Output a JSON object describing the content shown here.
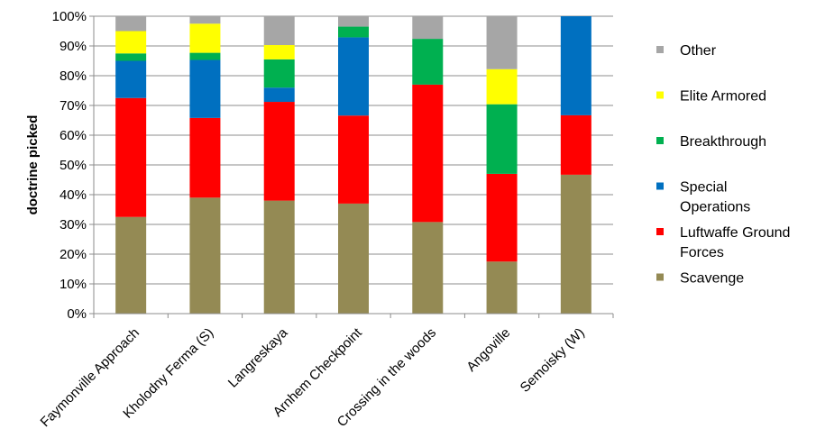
{
  "chart_data": {
    "type": "bar",
    "stacked": true,
    "normalized": true,
    "ylabel": "doctrine picked",
    "xlabel": "",
    "ylim": [
      0,
      100
    ],
    "y_ticks": [
      "0%",
      "10%",
      "20%",
      "30%",
      "40%",
      "50%",
      "60%",
      "70%",
      "80%",
      "90%",
      "100%"
    ],
    "categories": [
      "Faymonville Approach",
      "Kholodny Ferma (S)",
      "Langreskaya",
      "Arnhem Checkpoint",
      "Crossing in the woods",
      "Angoville",
      "Semoisky (W)"
    ],
    "series": [
      {
        "name": "Scavenge",
        "color": "#948A54",
        "values": [
          32.5,
          39,
          38,
          37,
          30.8,
          17.5,
          46.7
        ]
      },
      {
        "name": "Luftwaffe Ground Forces",
        "color": "#FF0000",
        "values": [
          40,
          26.8,
          33.2,
          29.6,
          46.2,
          29.5,
          20
        ]
      },
      {
        "name": "Special Operations",
        "color": "#0070C0",
        "values": [
          12.5,
          19.5,
          4.8,
          26.3,
          0,
          0,
          33.3
        ]
      },
      {
        "name": "Breakthrough",
        "color": "#00B050",
        "values": [
          2.5,
          2.4,
          9.5,
          3.6,
          15.4,
          23.4,
          0
        ]
      },
      {
        "name": "Elite Armored",
        "color": "#FFFF00",
        "values": [
          7.5,
          9.8,
          4.8,
          0,
          0,
          11.8,
          0
        ]
      },
      {
        "name": "Other",
        "color": "#A6A6A6",
        "values": [
          5,
          2.5,
          9.7,
          3.5,
          7.6,
          17.8,
          0
        ]
      }
    ],
    "legend_position": "right",
    "grid": true
  }
}
